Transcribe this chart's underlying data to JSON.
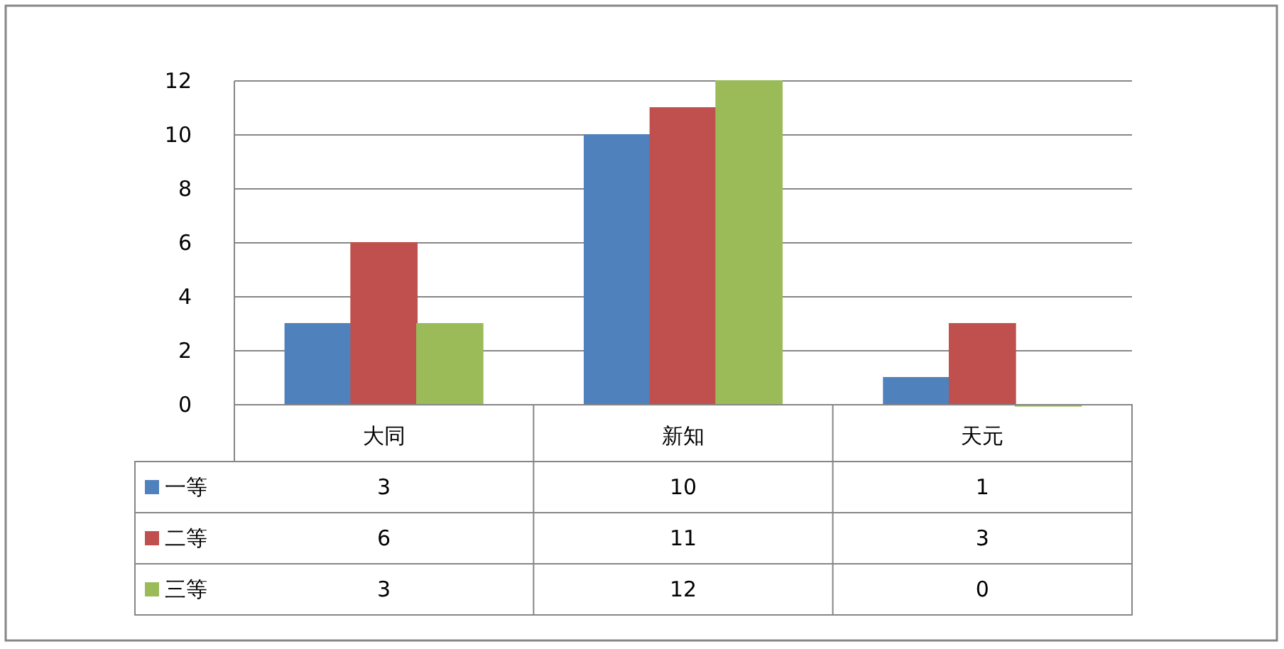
{
  "chart_data": {
    "type": "bar",
    "categories": [
      "大同",
      "新知",
      "天元"
    ],
    "series": [
      {
        "name": "一等",
        "color": "#4f81bd",
        "values": [
          3,
          10,
          1
        ]
      },
      {
        "name": "二等",
        "color": "#c0504d",
        "values": [
          6,
          11,
          3
        ]
      },
      {
        "name": "三等",
        "color": "#9bbb59",
        "values": [
          3,
          12,
          0
        ]
      }
    ],
    "ylim": [
      0,
      12
    ],
    "yticks": [
      0,
      2,
      4,
      6,
      8,
      10,
      12
    ],
    "grid": "y",
    "legend": "bottom",
    "data_labels": true
  }
}
